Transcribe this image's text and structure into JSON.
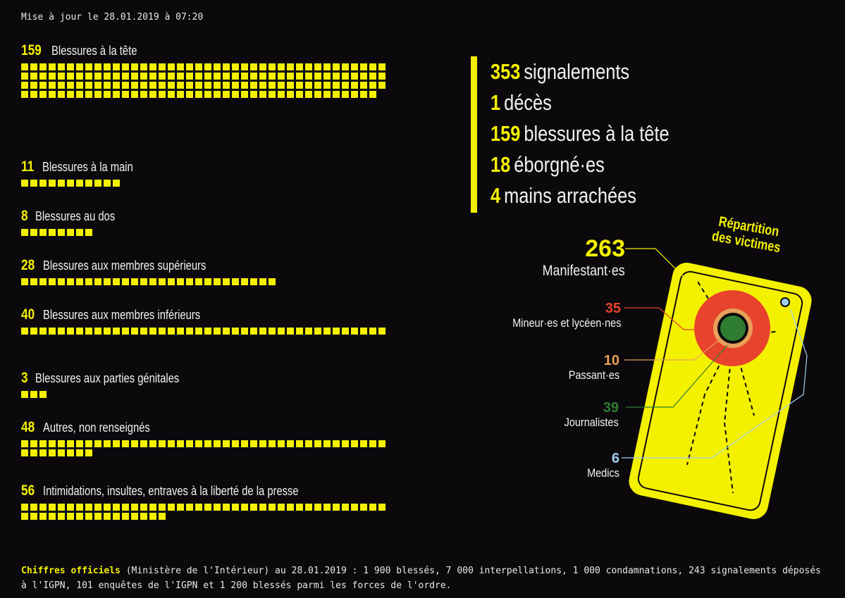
{
  "update_text": "Mise à jour le 28.01.2019 à 07:20",
  "chart_data": {
    "type": "bar",
    "categories": [
      "Blessures à la tête",
      "Blessures à la main",
      "Blessures au dos",
      "Blessures aux membres supérieurs",
      "Blessures aux membres inférieurs",
      "Blessures aux parties génitales",
      "Autres, non renseignés",
      "Intimidations, insultes, entraves à la liberté de la presse"
    ],
    "values": [
      159,
      11,
      8,
      28,
      40,
      3,
      48,
      56
    ],
    "title": "",
    "xlabel": "",
    "ylabel": ""
  },
  "summary": [
    {
      "num": "353",
      "label": "signalements"
    },
    {
      "num": "1",
      "label": "décès"
    },
    {
      "num": "159",
      "label": "blessures à la tête"
    },
    {
      "num": "18",
      "label": "éborgné·es"
    },
    {
      "num": "4",
      "label": "mains arrachées"
    }
  ],
  "victims": {
    "title_line1": "Répartition",
    "title_line2": "des victimes",
    "groups": [
      {
        "num": "263",
        "label": "Manifestant·es",
        "color": "#f4f100"
      },
      {
        "num": "35",
        "label": "Mineur·es et lycéen·nes",
        "color": "#e8432c"
      },
      {
        "num": "10",
        "label": "Passant·es",
        "color": "#e8a05a"
      },
      {
        "num": "39",
        "label": "Journalistes",
        "color": "#2e7d32"
      },
      {
        "num": "6",
        "label": "Medics",
        "color": "#9fd0ee"
      }
    ]
  },
  "footer": {
    "highlight": "Chiffres officiels",
    "text": " (Ministère de l'Intérieur) au 28.01.2019 : 1 900 blessés, 7 000 interpellations, 1 000 condamnations, 243 signalements déposés à l'IGPN, 101 enquêtes de l'IGPN et 1 200 blessés parmi les forces de l'ordre."
  },
  "colors": {
    "accent": "#f4f100",
    "background": "#0c090d"
  }
}
